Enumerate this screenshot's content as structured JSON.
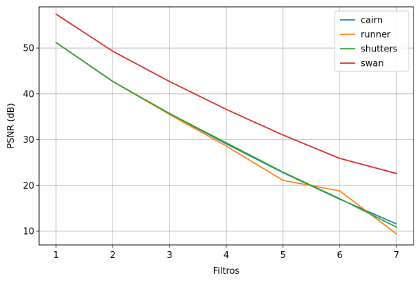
{
  "chart_data": {
    "type": "line",
    "title": "",
    "xlabel": "Filtros",
    "ylabel": "PSNR (dB)",
    "xlim": [
      0.7,
      7.3
    ],
    "ylim": [
      7,
      59
    ],
    "x_ticks": [
      1,
      2,
      3,
      4,
      5,
      6,
      7
    ],
    "y_ticks": [
      10,
      20,
      30,
      40,
      50
    ],
    "grid": true,
    "legend_position": "top-right",
    "x": [
      1,
      2,
      3,
      4,
      5,
      6,
      7
    ],
    "series": [
      {
        "name": "cairn",
        "color": "#1f77b4",
        "values": [
          51.2,
          42.7,
          35.7,
          29.1,
          22.8,
          17.0,
          11.6
        ]
      },
      {
        "name": "runner",
        "color": "#ff7f0e",
        "values": [
          51.2,
          42.7,
          35.5,
          28.6,
          21.1,
          18.8,
          9.4
        ]
      },
      {
        "name": "shutters",
        "color": "#2ca02c",
        "values": [
          51.2,
          42.7,
          35.7,
          29.3,
          22.9,
          17.1,
          10.9
        ]
      },
      {
        "name": "swan",
        "color": "#d62728",
        "values": [
          57.4,
          49.3,
          42.7,
          36.6,
          31.0,
          25.9,
          22.6
        ]
      }
    ]
  }
}
